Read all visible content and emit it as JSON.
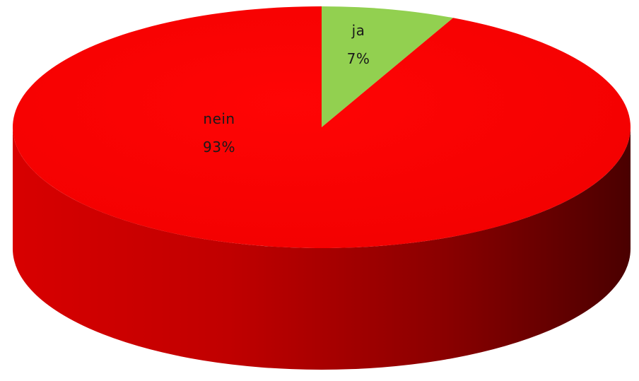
{
  "chart_data": {
    "type": "pie",
    "style": "3d",
    "title": "",
    "categories": [
      "ja",
      "nein"
    ],
    "values": [
      7,
      93
    ],
    "value_unit": "%",
    "labels": [
      {
        "category": "ja",
        "text": "7%"
      },
      {
        "category": "nein",
        "text": "93%"
      }
    ],
    "colors": {
      "ja": "#92d050",
      "nein": "#ff0000",
      "side_dark": "#5a0000",
      "side_light": "#e00000"
    },
    "legend": "none",
    "data_labels": "inside"
  }
}
